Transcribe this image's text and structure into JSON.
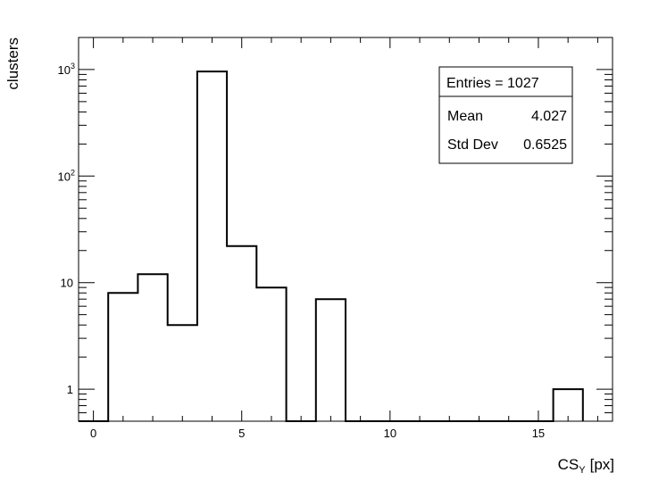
{
  "chart_data": {
    "type": "bar",
    "histogram": true,
    "bin_width": 1,
    "bin_centers": [
      0,
      1,
      2,
      3,
      4,
      5,
      6,
      7,
      8,
      9,
      10,
      11,
      12,
      13,
      14,
      15,
      16
    ],
    "values": [
      0,
      8,
      12,
      4,
      960,
      22,
      9,
      0,
      7,
      0,
      0,
      0,
      0,
      0,
      0,
      0,
      1
    ],
    "xlabel_main": "CS",
    "xlabel_sub": "Y",
    "xlabel_unit": "[px]",
    "ylabel": "clusters",
    "xlim": [
      -0.5,
      17.5
    ],
    "ylim": [
      0.5,
      2000
    ],
    "y_scale": "log",
    "x_ticks": [
      "0",
      "5",
      "10",
      "15"
    ],
    "y_ticks": [
      {
        "value": 1,
        "label": "1"
      },
      {
        "value": 10,
        "label": "10"
      },
      {
        "value": 100,
        "label": "10",
        "exp": "2"
      },
      {
        "value": 1000,
        "label": "10",
        "exp": "3"
      }
    ],
    "grid": false,
    "stats_box": {
      "placement": "top-right",
      "title": "Entries = 1027",
      "rows": [
        {
          "label": "Mean",
          "value": "4.027"
        },
        {
          "label": "Std Dev",
          "value": "0.6525"
        }
      ]
    }
  }
}
